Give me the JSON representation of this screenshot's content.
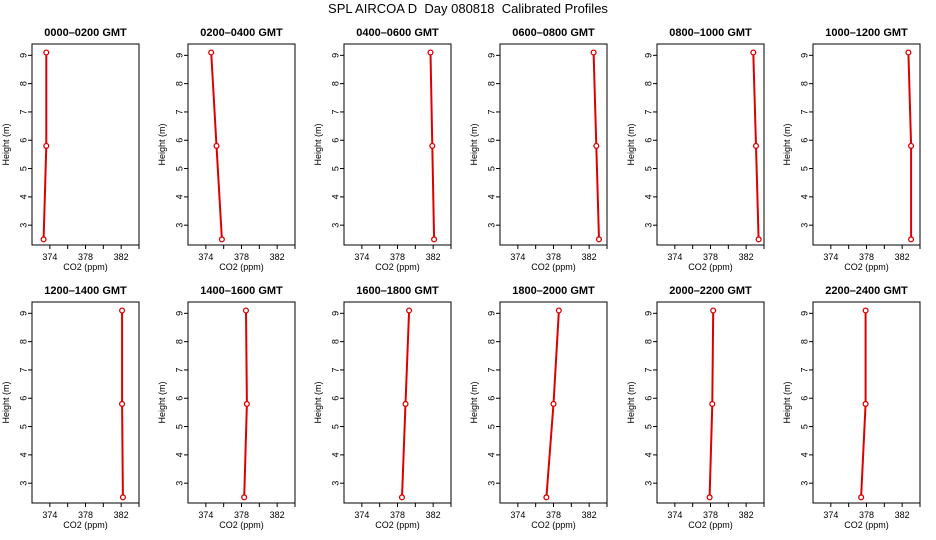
{
  "title": "SPL AIRCOA D  Day 080818  Calibrated Profiles",
  "line_color": "#dd0000",
  "chart_data": [
    {
      "type": "line",
      "title": "0000–0200 GMT",
      "xlabel": "CO2 (ppm)",
      "ylabel": "Height (m)",
      "xlim": [
        372,
        384
      ],
      "ylim": [
        2.3,
        9.4
      ],
      "xticks": [
        374,
        378,
        382
      ],
      "yticks": [
        3,
        4,
        5,
        6,
        7,
        8,
        9
      ],
      "grid": false,
      "x": [
        373.3,
        373.6,
        373.6
      ],
      "y": [
        2.5,
        5.8,
        9.1
      ]
    },
    {
      "type": "line",
      "title": "0200–0400 GMT",
      "xlabel": "CO2 (ppm)",
      "ylabel": "Height (m)",
      "xlim": [
        372,
        384
      ],
      "ylim": [
        2.3,
        9.4
      ],
      "xticks": [
        374,
        378,
        382
      ],
      "yticks": [
        3,
        4,
        5,
        6,
        7,
        8,
        9
      ],
      "grid": false,
      "x": [
        375.8,
        375.2,
        374.6
      ],
      "y": [
        2.5,
        5.8,
        9.1
      ]
    },
    {
      "type": "line",
      "title": "0400–0600 GMT",
      "xlabel": "CO2 (ppm)",
      "ylabel": "Height (m)",
      "xlim": [
        372,
        384
      ],
      "ylim": [
        2.3,
        9.4
      ],
      "xticks": [
        374,
        378,
        382
      ],
      "yticks": [
        3,
        4,
        5,
        6,
        7,
        8,
        9
      ],
      "grid": false,
      "x": [
        382.1,
        381.9,
        381.7
      ],
      "y": [
        2.5,
        5.8,
        9.1
      ]
    },
    {
      "type": "line",
      "title": "0600–0800 GMT",
      "xlabel": "CO2 (ppm)",
      "ylabel": "Height (m)",
      "xlim": [
        372,
        384
      ],
      "ylim": [
        2.3,
        9.4
      ],
      "xticks": [
        374,
        378,
        382
      ],
      "yticks": [
        3,
        4,
        5,
        6,
        7,
        8,
        9
      ],
      "grid": false,
      "x": [
        383.1,
        382.8,
        382.5
      ],
      "y": [
        2.5,
        5.8,
        9.1
      ]
    },
    {
      "type": "line",
      "title": "0800–1000 GMT",
      "xlabel": "CO2 (ppm)",
      "ylabel": "Height (m)",
      "xlim": [
        372,
        384
      ],
      "ylim": [
        2.3,
        9.4
      ],
      "xticks": [
        374,
        378,
        382
      ],
      "yticks": [
        3,
        4,
        5,
        6,
        7,
        8,
        9
      ],
      "grid": false,
      "x": [
        383.4,
        383.1,
        382.8
      ],
      "y": [
        2.5,
        5.8,
        9.1
      ]
    },
    {
      "type": "line",
      "title": "1000–1200 GMT",
      "xlabel": "CO2 (ppm)",
      "ylabel": "Height (m)",
      "xlim": [
        372,
        384
      ],
      "ylim": [
        2.3,
        9.4
      ],
      "xticks": [
        374,
        378,
        382
      ],
      "yticks": [
        3,
        4,
        5,
        6,
        7,
        8,
        9
      ],
      "grid": false,
      "x": [
        383.0,
        383.0,
        382.7
      ],
      "y": [
        2.5,
        5.8,
        9.1
      ]
    },
    {
      "type": "line",
      "title": "1200–1400 GMT",
      "xlabel": "CO2 (ppm)",
      "ylabel": "Height (m)",
      "xlim": [
        372,
        384
      ],
      "ylim": [
        2.3,
        9.4
      ],
      "xticks": [
        374,
        378,
        382
      ],
      "yticks": [
        3,
        4,
        5,
        6,
        7,
        8,
        9
      ],
      "grid": false,
      "x": [
        382.2,
        382.1,
        382.1
      ],
      "y": [
        2.5,
        5.8,
        9.1
      ]
    },
    {
      "type": "line",
      "title": "1400–1600 GMT",
      "xlabel": "CO2 (ppm)",
      "ylabel": "Height (m)",
      "xlim": [
        372,
        384
      ],
      "ylim": [
        2.3,
        9.4
      ],
      "xticks": [
        374,
        378,
        382
      ],
      "yticks": [
        3,
        4,
        5,
        6,
        7,
        8,
        9
      ],
      "grid": false,
      "x": [
        378.3,
        378.6,
        378.5
      ],
      "y": [
        2.5,
        5.8,
        9.1
      ]
    },
    {
      "type": "line",
      "title": "1600–1800 GMT",
      "xlabel": "CO2 (ppm)",
      "ylabel": "Height (m)",
      "xlim": [
        372,
        384
      ],
      "ylim": [
        2.3,
        9.4
      ],
      "xticks": [
        374,
        378,
        382
      ],
      "yticks": [
        3,
        4,
        5,
        6,
        7,
        8,
        9
      ],
      "grid": false,
      "x": [
        378.5,
        378.9,
        379.3
      ],
      "y": [
        2.5,
        5.8,
        9.1
      ]
    },
    {
      "type": "line",
      "title": "1800–2000 GMT",
      "xlabel": "CO2 (ppm)",
      "ylabel": "Height (m)",
      "xlim": [
        372,
        384
      ],
      "ylim": [
        2.3,
        9.4
      ],
      "xticks": [
        374,
        378,
        382
      ],
      "yticks": [
        3,
        4,
        5,
        6,
        7,
        8,
        9
      ],
      "grid": false,
      "x": [
        377.2,
        378.0,
        378.6
      ],
      "y": [
        2.5,
        5.8,
        9.1
      ]
    },
    {
      "type": "line",
      "title": "2000–2200 GMT",
      "xlabel": "CO2 (ppm)",
      "ylabel": "Height (m)",
      "xlim": [
        372,
        384
      ],
      "ylim": [
        2.3,
        9.4
      ],
      "xticks": [
        374,
        378,
        382
      ],
      "yticks": [
        3,
        4,
        5,
        6,
        7,
        8,
        9
      ],
      "grid": false,
      "x": [
        377.9,
        378.2,
        378.3
      ],
      "y": [
        2.5,
        5.8,
        9.1
      ]
    },
    {
      "type": "line",
      "title": "2200–2400 GMT",
      "xlabel": "CO2 (ppm)",
      "ylabel": "Height (m)",
      "xlim": [
        372,
        384
      ],
      "ylim": [
        2.3,
        9.4
      ],
      "xticks": [
        374,
        378,
        382
      ],
      "yticks": [
        3,
        4,
        5,
        6,
        7,
        8,
        9
      ],
      "grid": false,
      "x": [
        377.4,
        377.9,
        377.9
      ],
      "y": [
        2.5,
        5.8,
        9.1
      ]
    }
  ]
}
